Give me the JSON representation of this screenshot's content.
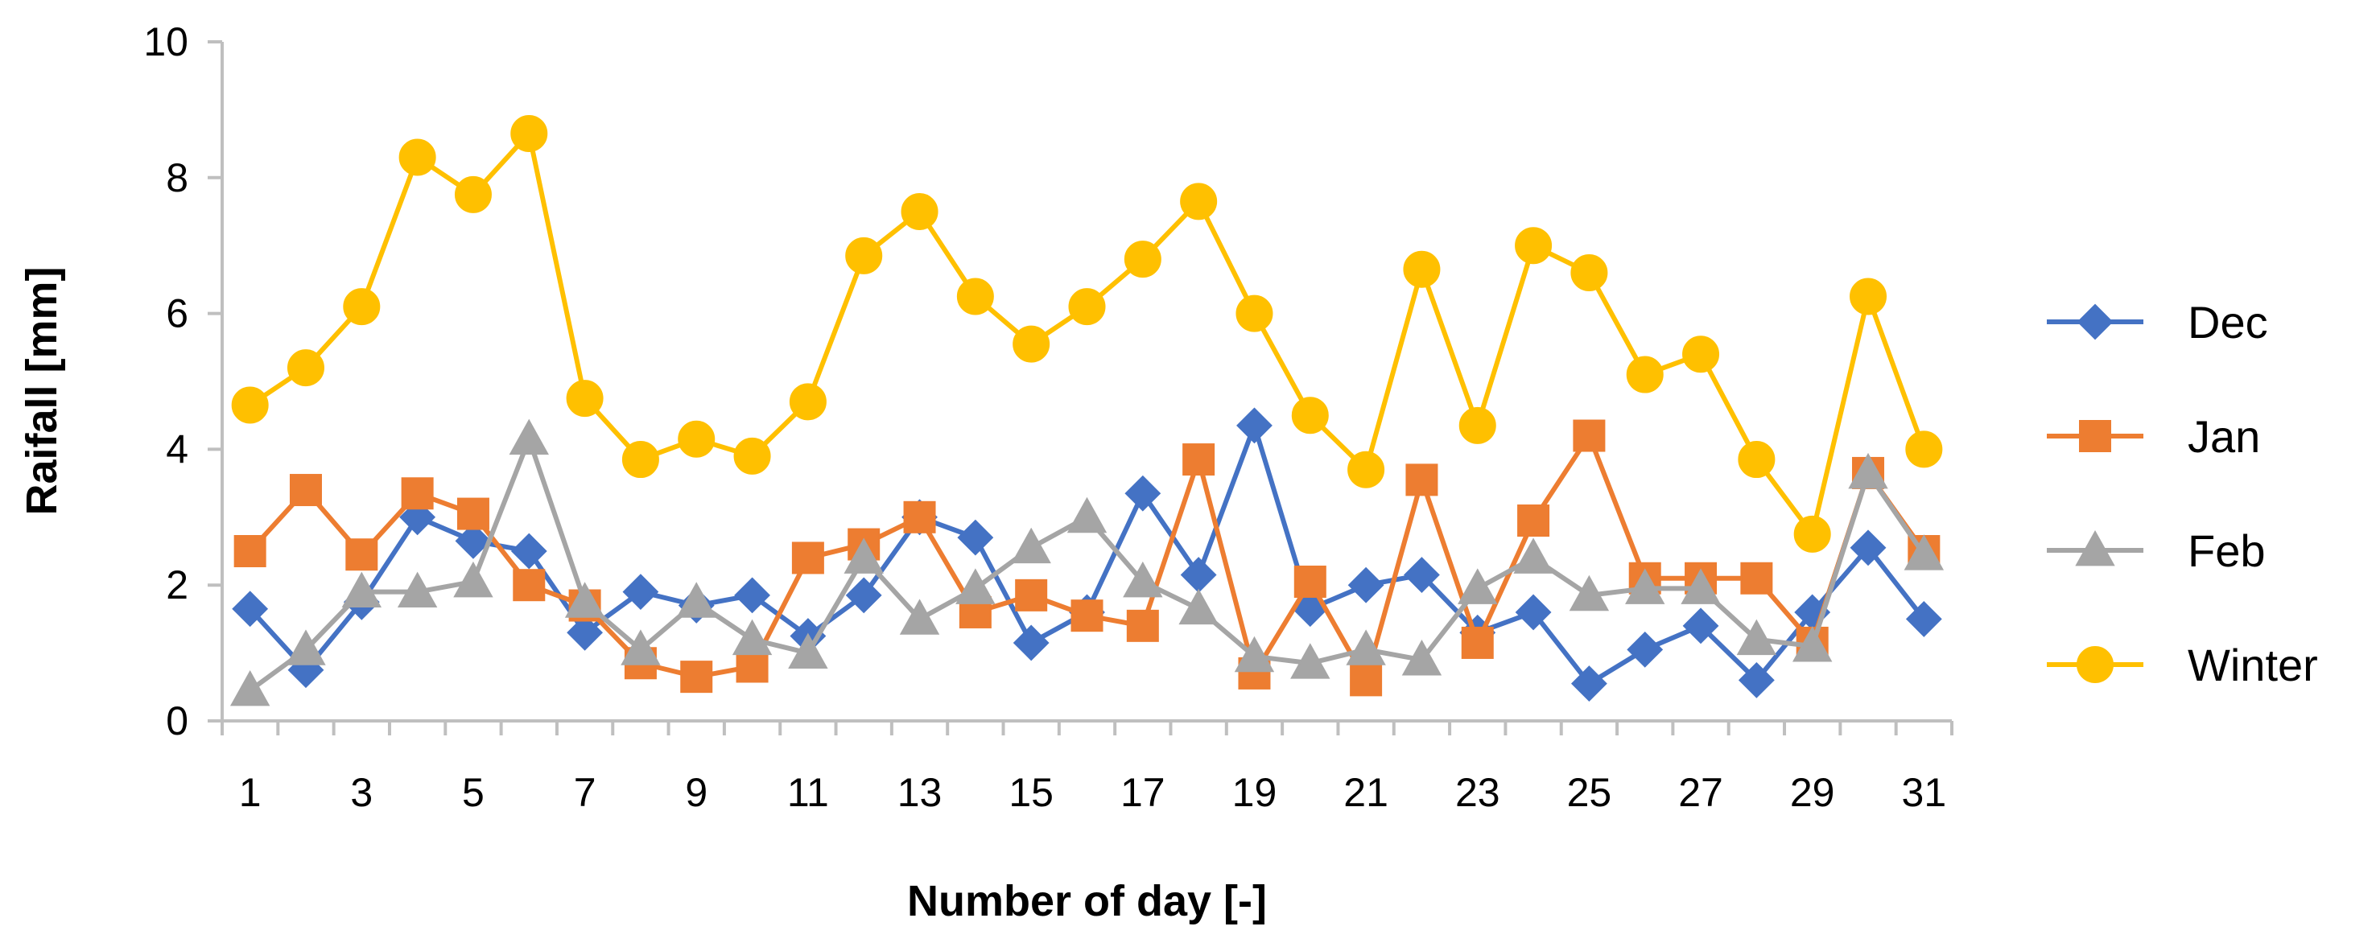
{
  "chart_data": {
    "type": "line",
    "title": "",
    "xlabel": "Number of day [-]",
    "ylabel": "Raifall [mm]",
    "x": [
      1,
      2,
      3,
      4,
      5,
      6,
      7,
      8,
      9,
      10,
      11,
      12,
      13,
      14,
      15,
      16,
      17,
      18,
      19,
      20,
      21,
      22,
      23,
      24,
      25,
      26,
      27,
      28,
      29,
      30,
      31
    ],
    "xtick_labels": [
      "1",
      "3",
      "5",
      "7",
      "9",
      "11",
      "13",
      "15",
      "17",
      "19",
      "21",
      "23",
      "25",
      "27",
      "29",
      "31"
    ],
    "ylim": [
      0,
      10
    ],
    "ytick_labels": [
      "0",
      "2",
      "4",
      "6",
      "8",
      "10"
    ],
    "legend_position": "right",
    "series": [
      {
        "name": "Dec",
        "color": "#4472C4",
        "marker": "diamond",
        "values": [
          1.65,
          0.75,
          1.75,
          3.0,
          2.65,
          2.5,
          1.3,
          1.9,
          1.7,
          1.85,
          1.25,
          1.85,
          3.0,
          2.7,
          1.15,
          1.6,
          3.35,
          2.15,
          4.35,
          1.65,
          2.0,
          2.15,
          1.3,
          1.6,
          0.55,
          1.05,
          1.4,
          0.6,
          1.6,
          2.55,
          1.5
        ]
      },
      {
        "name": "Jan",
        "color": "#ED7D31",
        "marker": "square",
        "values": [
          2.5,
          3.4,
          2.45,
          3.35,
          3.05,
          2.0,
          1.7,
          0.85,
          0.65,
          0.8,
          2.4,
          2.6,
          3.0,
          1.6,
          1.85,
          1.55,
          1.4,
          3.85,
          0.7,
          2.05,
          0.6,
          3.55,
          1.15,
          2.95,
          4.2,
          2.1,
          2.1,
          2.1,
          1.15,
          3.65,
          2.5
        ]
      },
      {
        "name": "Feb",
        "color": "#A5A5A5",
        "marker": "triangle",
        "values": [
          0.45,
          1.05,
          1.9,
          1.9,
          2.05,
          4.15,
          1.75,
          1.05,
          1.75,
          1.2,
          1.0,
          2.4,
          1.5,
          1.95,
          2.55,
          3.0,
          2.05,
          1.65,
          0.95,
          0.85,
          1.05,
          0.9,
          1.95,
          2.4,
          1.85,
          1.95,
          1.95,
          1.2,
          1.1,
          3.65,
          2.45
        ]
      },
      {
        "name": "Winter",
        "color": "#FFC000",
        "marker": "circle",
        "values": [
          4.65,
          5.2,
          6.1,
          8.3,
          7.75,
          8.65,
          4.75,
          3.85,
          4.15,
          3.9,
          4.7,
          6.85,
          7.5,
          6.25,
          5.55,
          6.1,
          6.8,
          7.65,
          6.0,
          4.5,
          3.7,
          6.65,
          4.35,
          7.0,
          6.6,
          5.1,
          5.4,
          3.85,
          2.75,
          6.25,
          4.0
        ]
      }
    ]
  }
}
